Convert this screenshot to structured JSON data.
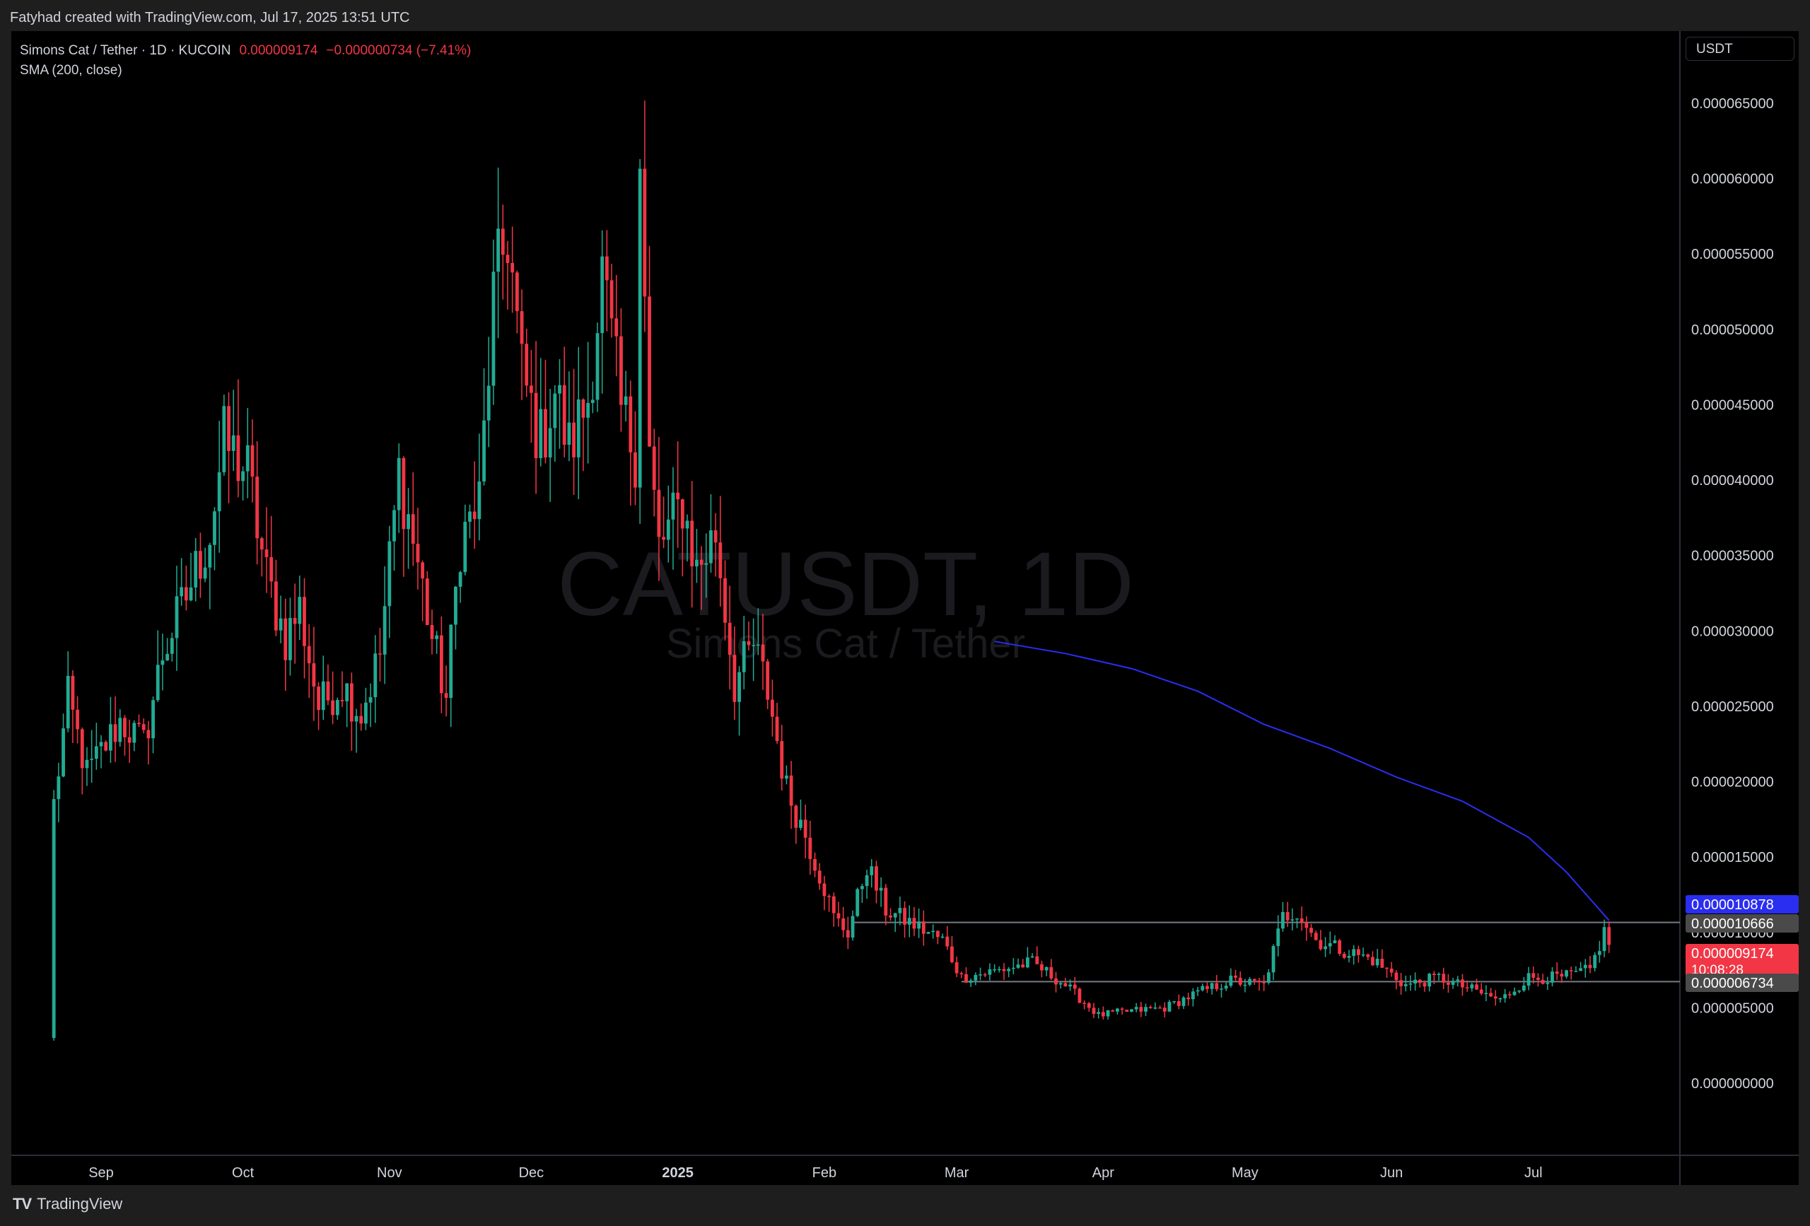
{
  "credit": "Fatyhad created with TradingView.com, Jul 17, 2025 13:51 UTC",
  "legend": {
    "symbol_line": "Simons Cat / Tether · 1D · KUCOIN",
    "price": "0.000009174",
    "change": "−0.000000734 (−7.41%)",
    "indicator": "SMA (200, close)"
  },
  "currency_button": "USDT",
  "watermark": {
    "ticker": "CATUSDT, 1D",
    "name": "Simons Cat / Tether"
  },
  "brand": "TradingView",
  "colors": {
    "up": "#22ab94",
    "down": "#f23645",
    "sma": "#2a2ef0",
    "grid_line": "#787b86",
    "background": "#000000"
  },
  "chart_data": {
    "type": "candlestick",
    "title": "Simons Cat / Tether · 1D · KUCOIN",
    "x_axis": {
      "ticks": [
        "Sep",
        "Oct",
        "Nov",
        "Dec",
        "2025",
        "Feb",
        "Mar",
        "Apr",
        "May",
        "Jun",
        "Jul"
      ],
      "tick_dates": [
        "2024-09-01",
        "2024-10-01",
        "2024-11-01",
        "2024-12-01",
        "2025-01-01",
        "2025-02-01",
        "2025-03-01",
        "2025-04-01",
        "2025-05-01",
        "2025-06-01",
        "2025-07-01"
      ],
      "range": [
        "2024-08-22",
        "2025-07-17"
      ]
    },
    "y_axis": {
      "ticks": [
        "0.000065000",
        "0.000060000",
        "0.000055000",
        "0.000050000",
        "0.000045000",
        "0.000040000",
        "0.000035000",
        "0.000030000",
        "0.000025000",
        "0.000020000",
        "0.000015000",
        "0.000010000",
        "0.000005000",
        "0.000000000"
      ],
      "range": [
        -4e-06,
        6.85e-05
      ]
    },
    "series": [
      {
        "name": "CATUSDT",
        "kind": "ohlc_path",
        "anchors": [
          [
            "2024-08-22",
            1.85e-05
          ],
          [
            "2024-08-25",
            2.55e-05
          ],
          [
            "2024-08-29",
            2.05e-05
          ],
          [
            "2024-09-05",
            2.4e-05
          ],
          [
            "2024-09-10",
            2.25e-05
          ],
          [
            "2024-09-14",
            2.85e-05
          ],
          [
            "2024-09-18",
            3.15e-05
          ],
          [
            "2024-09-24",
            3.65e-05
          ],
          [
            "2024-09-27",
            4.25e-05
          ],
          [
            "2024-10-02",
            4.05e-05
          ],
          [
            "2024-10-06",
            3.35e-05
          ],
          [
            "2024-10-10",
            2.95e-05
          ],
          [
            "2024-10-13",
            3.15e-05
          ],
          [
            "2024-10-17",
            2.5e-05
          ],
          [
            "2024-10-22",
            2.65e-05
          ],
          [
            "2024-10-26",
            2.45e-05
          ],
          [
            "2024-10-30",
            2.85e-05
          ],
          [
            "2024-11-03",
            4.05e-05
          ],
          [
            "2024-11-07",
            3.45e-05
          ],
          [
            "2024-11-10",
            2.95e-05
          ],
          [
            "2024-11-13",
            2.55e-05
          ],
          [
            "2024-11-16",
            3.6e-05
          ],
          [
            "2024-11-20",
            3.85e-05
          ],
          [
            "2024-11-23",
            5.2e-05
          ],
          [
            "2024-11-26",
            5.65e-05
          ],
          [
            "2024-11-29",
            4.7e-05
          ],
          [
            "2024-12-03",
            4.25e-05
          ],
          [
            "2024-12-06",
            4.6e-05
          ],
          [
            "2024-12-09",
            4.2e-05
          ],
          [
            "2024-12-13",
            4.55e-05
          ],
          [
            "2024-12-16",
            5.35e-05
          ],
          [
            "2024-12-20",
            4.45e-05
          ],
          [
            "2024-12-23",
            4.2e-05
          ],
          [
            "2024-12-24",
            6.25e-05
          ],
          [
            "2024-12-26",
            4.15e-05
          ],
          [
            "2024-12-28",
            3.55e-05
          ],
          [
            "2025-01-02",
            3.85e-05
          ],
          [
            "2025-01-05",
            3.4e-05
          ],
          [
            "2025-01-09",
            3.65e-05
          ],
          [
            "2025-01-13",
            2.65e-05
          ],
          [
            "2025-01-17",
            2.9e-05
          ],
          [
            "2025-01-20",
            2.6e-05
          ],
          [
            "2025-01-24",
            1.95e-05
          ],
          [
            "2025-01-28",
            1.65e-05
          ],
          [
            "2025-02-01",
            1.3e-05
          ],
          [
            "2025-02-03",
            1.1e-05
          ],
          [
            "2025-02-06",
            1e-05
          ],
          [
            "2025-02-10",
            1.45e-05
          ],
          [
            "2025-02-14",
            1.15e-05
          ],
          [
            "2025-02-20",
            1.05e-05
          ],
          [
            "2025-02-26",
            9.5e-06
          ],
          [
            "2025-03-02",
            7e-06
          ],
          [
            "2025-03-10",
            7.5e-06
          ],
          [
            "2025-03-17",
            8e-06
          ],
          [
            "2025-03-24",
            6.5e-06
          ],
          [
            "2025-03-31",
            4.5e-06
          ],
          [
            "2025-04-07",
            4.8e-06
          ],
          [
            "2025-04-14",
            5e-06
          ],
          [
            "2025-04-21",
            6e-06
          ],
          [
            "2025-04-28",
            6.8e-06
          ],
          [
            "2025-05-05",
            6.5e-06
          ],
          [
            "2025-05-09",
            1.1e-05
          ],
          [
            "2025-05-12",
            1.15e-05
          ],
          [
            "2025-05-16",
            9.5e-06
          ],
          [
            "2025-05-22",
            8.8e-06
          ],
          [
            "2025-05-28",
            8.2e-06
          ],
          [
            "2025-06-04",
            6.5e-06
          ],
          [
            "2025-06-11",
            7e-06
          ],
          [
            "2025-06-18",
            6.2e-06
          ],
          [
            "2025-06-24",
            5.5e-06
          ],
          [
            "2025-06-30",
            7e-06
          ],
          [
            "2025-07-07",
            7e-06
          ],
          [
            "2025-07-13",
            7.5e-06
          ],
          [
            "2025-07-16",
            1e-05
          ],
          [
            "2025-07-17",
            9.174e-06
          ]
        ]
      },
      {
        "name": "SMA (200, close)",
        "kind": "line",
        "points": [
          [
            "2025-03-09",
            2.93e-05
          ],
          [
            "2025-03-24",
            2.85e-05
          ],
          [
            "2025-04-07",
            2.75e-05
          ],
          [
            "2025-04-21",
            2.6e-05
          ],
          [
            "2025-05-05",
            2.38e-05
          ],
          [
            "2025-05-19",
            2.22e-05
          ],
          [
            "2025-06-02",
            2.03e-05
          ],
          [
            "2025-06-16",
            1.87e-05
          ],
          [
            "2025-06-30",
            1.63e-05
          ],
          [
            "2025-07-08",
            1.4e-05
          ],
          [
            "2025-07-17",
            1.08e-05
          ]
        ]
      }
    ],
    "horizontal_levels": [
      {
        "value": 1.0666e-05,
        "from": "2025-02-07",
        "label": "0.000010666"
      },
      {
        "value": 6.734e-06,
        "from": "2025-03-02",
        "label": "0.000006734"
      }
    ],
    "price_labels": [
      {
        "value": 1.0878e-05,
        "label": "0.000010878",
        "kind": "sma",
        "color": "#2a2ef0"
      },
      {
        "value": 1.0666e-05,
        "label": "0.000010666",
        "kind": "level",
        "color": "#4a4a4a"
      },
      {
        "value": 9.174e-06,
        "label": "0.000009174",
        "sub": "10:08:28",
        "kind": "last",
        "color": "#f23645"
      },
      {
        "value": 6.734e-06,
        "label": "0.000006734",
        "kind": "level",
        "color": "#4a4a4a"
      }
    ],
    "grid": false
  }
}
